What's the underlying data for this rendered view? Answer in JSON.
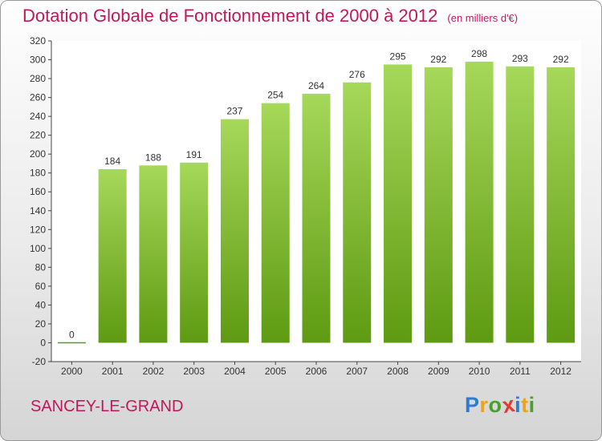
{
  "header": {
    "title": "Dotation Globale de Fonctionnement de 2000 à 2012",
    "subtitle": "(en milliers d'€)"
  },
  "footer": {
    "commune": "SANCEY-LE-GRAND",
    "brand": "Proxiti",
    "brand_letters": [
      {
        "char": "P",
        "color": "#2e7bd6"
      },
      {
        "char": "r",
        "color": "#e8a524"
      },
      {
        "char": "o",
        "color": "#4aa02c"
      },
      {
        "char": "x",
        "color": "#e8372e"
      },
      {
        "char": "i",
        "color": "#2e7bd6"
      },
      {
        "char": "t",
        "color": "#e8a524"
      },
      {
        "char": "i",
        "color": "#4aa02c"
      }
    ]
  },
  "chart_data": {
    "type": "bar",
    "title": "Dotation Globale de Fonctionnement de 2000 à 2012",
    "subtitle": "(en milliers d'€)",
    "categories": [
      "2000",
      "2001",
      "2002",
      "2003",
      "2004",
      "2005",
      "2006",
      "2007",
      "2008",
      "2009",
      "2010",
      "2011",
      "2012"
    ],
    "values": [
      0,
      184,
      188,
      191,
      237,
      254,
      264,
      276,
      295,
      292,
      298,
      293,
      292
    ],
    "ylim": [
      -20,
      320
    ],
    "yticks": [
      -20,
      0,
      20,
      40,
      60,
      80,
      100,
      120,
      140,
      160,
      180,
      200,
      220,
      240,
      260,
      280,
      300,
      320
    ],
    "grid": false,
    "legend": "none",
    "colors": {
      "bar_light": "#a6d85a",
      "bar_dark": "#5e9a12",
      "title": "#c2185b",
      "axis": "#444444",
      "plot_bg": "#ffffff"
    }
  }
}
